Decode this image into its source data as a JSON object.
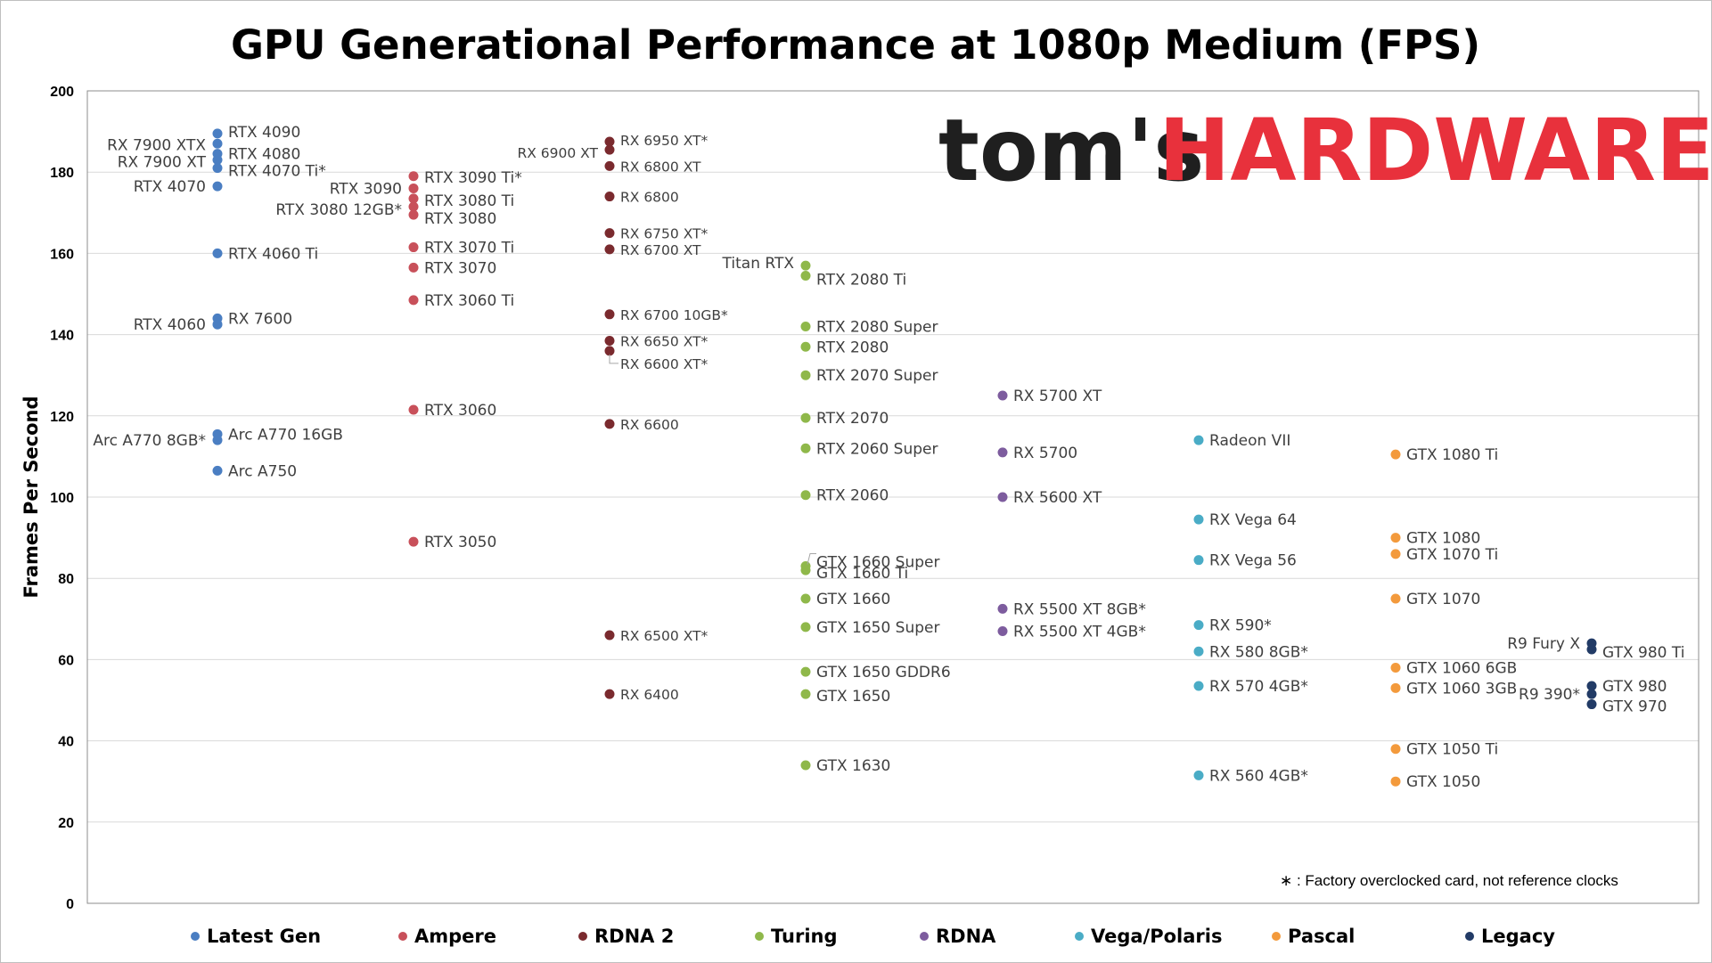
{
  "colors": {
    "Latest Gen": "#4a7ec2",
    "Ampere": "#c8505a",
    "RDNA 2": "#7a2a2e",
    "Turing": "#8fb84a",
    "RDNA": "#7d5c9e",
    "Vega/Polaris": "#4aacc6",
    "Pascal": "#f39a3c",
    "Legacy": "#223b66"
  },
  "logo": {
    "part1": "tom's",
    "part2": "HARDWARE"
  },
  "footnote": "∗ : Factory overclocked card, not reference clocks",
  "chart_data": {
    "type": "scatter",
    "title": "GPU Generational Performance at 1080p Medium (FPS)",
    "xlabel": "",
    "ylabel": "Frames Per Second",
    "ylim": [
      0,
      200
    ],
    "yticks": [
      0,
      20,
      40,
      60,
      80,
      100,
      120,
      140,
      160,
      180,
      200
    ],
    "grid": true,
    "legend_position": "bottom",
    "categories": [
      "Latest Gen",
      "Ampere",
      "RDNA 2",
      "Turing",
      "RDNA",
      "Vega/Polaris",
      "Pascal",
      "Legacy"
    ],
    "series": [
      {
        "name": "Latest Gen",
        "points": [
          {
            "label": "RTX 4090",
            "fps": 189.5
          },
          {
            "label": "RX 7900 XTX",
            "fps": 187.0
          },
          {
            "label": "RTX 4080",
            "fps": 184.5
          },
          {
            "label": "RX 7900 XT",
            "fps": 183.0
          },
          {
            "label": "RTX 4070 Ti*",
            "fps": 181.0
          },
          {
            "label": "RTX 4070",
            "fps": 176.5
          },
          {
            "label": "RTX 4060 Ti",
            "fps": 160.0
          },
          {
            "label": "RX 7600",
            "fps": 144.0
          },
          {
            "label": "RTX 4060",
            "fps": 142.5
          },
          {
            "label": "Arc A770 16GB",
            "fps": 115.5
          },
          {
            "label": "Arc A770 8GB*",
            "fps": 114.0
          },
          {
            "label": "Arc A750",
            "fps": 106.5
          }
        ]
      },
      {
        "name": "Ampere",
        "points": [
          {
            "label": "RTX 3090 Ti*",
            "fps": 179.0
          },
          {
            "label": "RTX 3090",
            "fps": 176.0
          },
          {
            "label": "RTX 3080 Ti",
            "fps": 173.5
          },
          {
            "label": "RTX 3080 12GB*",
            "fps": 171.5
          },
          {
            "label": "RTX 3080",
            "fps": 169.5
          },
          {
            "label": "RTX 3070 Ti",
            "fps": 161.5
          },
          {
            "label": "RTX 3070",
            "fps": 156.5
          },
          {
            "label": "RTX 3060 Ti",
            "fps": 148.5
          },
          {
            "label": "RTX 3060",
            "fps": 121.5
          },
          {
            "label": "RTX 3050",
            "fps": 89.0
          }
        ]
      },
      {
        "name": "RDNA 2",
        "points": [
          {
            "label": "RX 6950 XT*",
            "fps": 187.5
          },
          {
            "label": "RX 6900 XT",
            "fps": 185.5
          },
          {
            "label": "RX 6800 XT",
            "fps": 181.5
          },
          {
            "label": "RX 6800",
            "fps": 174.0
          },
          {
            "label": "RX 6750 XT*",
            "fps": 165.0
          },
          {
            "label": "RX 6700 XT",
            "fps": 161.0
          },
          {
            "label": "RX 6700 10GB*",
            "fps": 145.0
          },
          {
            "label": "RX 6650 XT*",
            "fps": 138.5
          },
          {
            "label": "RX 6600 XT*",
            "fps": 136.0
          },
          {
            "label": "RX 6600",
            "fps": 118.0
          },
          {
            "label": "RX 6500 XT*",
            "fps": 66.0
          },
          {
            "label": "RX 6400",
            "fps": 51.5
          }
        ]
      },
      {
        "name": "Turing",
        "points": [
          {
            "label": "Titan RTX",
            "fps": 157.0
          },
          {
            "label": "RTX 2080 Ti",
            "fps": 154.5
          },
          {
            "label": "RTX 2080 Super",
            "fps": 142.0
          },
          {
            "label": "RTX 2080",
            "fps": 137.0
          },
          {
            "label": "RTX 2070 Super",
            "fps": 130.0
          },
          {
            "label": "RTX 2070",
            "fps": 119.5
          },
          {
            "label": "RTX 2060 Super",
            "fps": 112.0
          },
          {
            "label": "RTX 2060",
            "fps": 100.5
          },
          {
            "label": "GTX 1660 Super",
            "fps": 83.0
          },
          {
            "label": "GTX 1660 Ti",
            "fps": 82.0
          },
          {
            "label": "GTX 1660",
            "fps": 75.0
          },
          {
            "label": "GTX 1650 Super",
            "fps": 68.0
          },
          {
            "label": "GTX 1650 GDDR6",
            "fps": 57.0
          },
          {
            "label": "GTX 1650",
            "fps": 51.5
          },
          {
            "label": "GTX 1630",
            "fps": 34.0
          }
        ]
      },
      {
        "name": "RDNA",
        "points": [
          {
            "label": "RX 5700 XT",
            "fps": 125.0
          },
          {
            "label": "RX 5700",
            "fps": 111.0
          },
          {
            "label": "RX 5600 XT",
            "fps": 100.0
          },
          {
            "label": "RX 5500 XT 8GB*",
            "fps": 72.5
          },
          {
            "label": "RX 5500 XT 4GB*",
            "fps": 67.0
          }
        ]
      },
      {
        "name": "Vega/Polaris",
        "points": [
          {
            "label": "Radeon VII",
            "fps": 114.0
          },
          {
            "label": "RX Vega 64",
            "fps": 94.5
          },
          {
            "label": "RX Vega 56",
            "fps": 84.5
          },
          {
            "label": "RX 590*",
            "fps": 68.5
          },
          {
            "label": "RX 580 8GB*",
            "fps": 62.0
          },
          {
            "label": "RX 570 4GB*",
            "fps": 53.5
          },
          {
            "label": "RX 560 4GB*",
            "fps": 31.5
          }
        ]
      },
      {
        "name": "Pascal",
        "points": [
          {
            "label": "GTX 1080 Ti",
            "fps": 110.5
          },
          {
            "label": "GTX 1080",
            "fps": 90.0
          },
          {
            "label": "GTX 1070 Ti",
            "fps": 86.0
          },
          {
            "label": "GTX 1070",
            "fps": 75.0
          },
          {
            "label": "GTX 1060 6GB",
            "fps": 58.0
          },
          {
            "label": "GTX 1060 3GB",
            "fps": 53.0
          },
          {
            "label": "GTX 1050 Ti",
            "fps": 38.0
          },
          {
            "label": "GTX 1050",
            "fps": 30.0
          }
        ]
      },
      {
        "name": "Legacy",
        "points": [
          {
            "label": "R9 Fury X",
            "fps": 64.0
          },
          {
            "label": "GTX 980 Ti",
            "fps": 62.5
          },
          {
            "label": "GTX 980",
            "fps": 53.5
          },
          {
            "label": "R9 390*",
            "fps": 51.5
          },
          {
            "label": "GTX 970",
            "fps": 49.0
          }
        ]
      }
    ]
  }
}
